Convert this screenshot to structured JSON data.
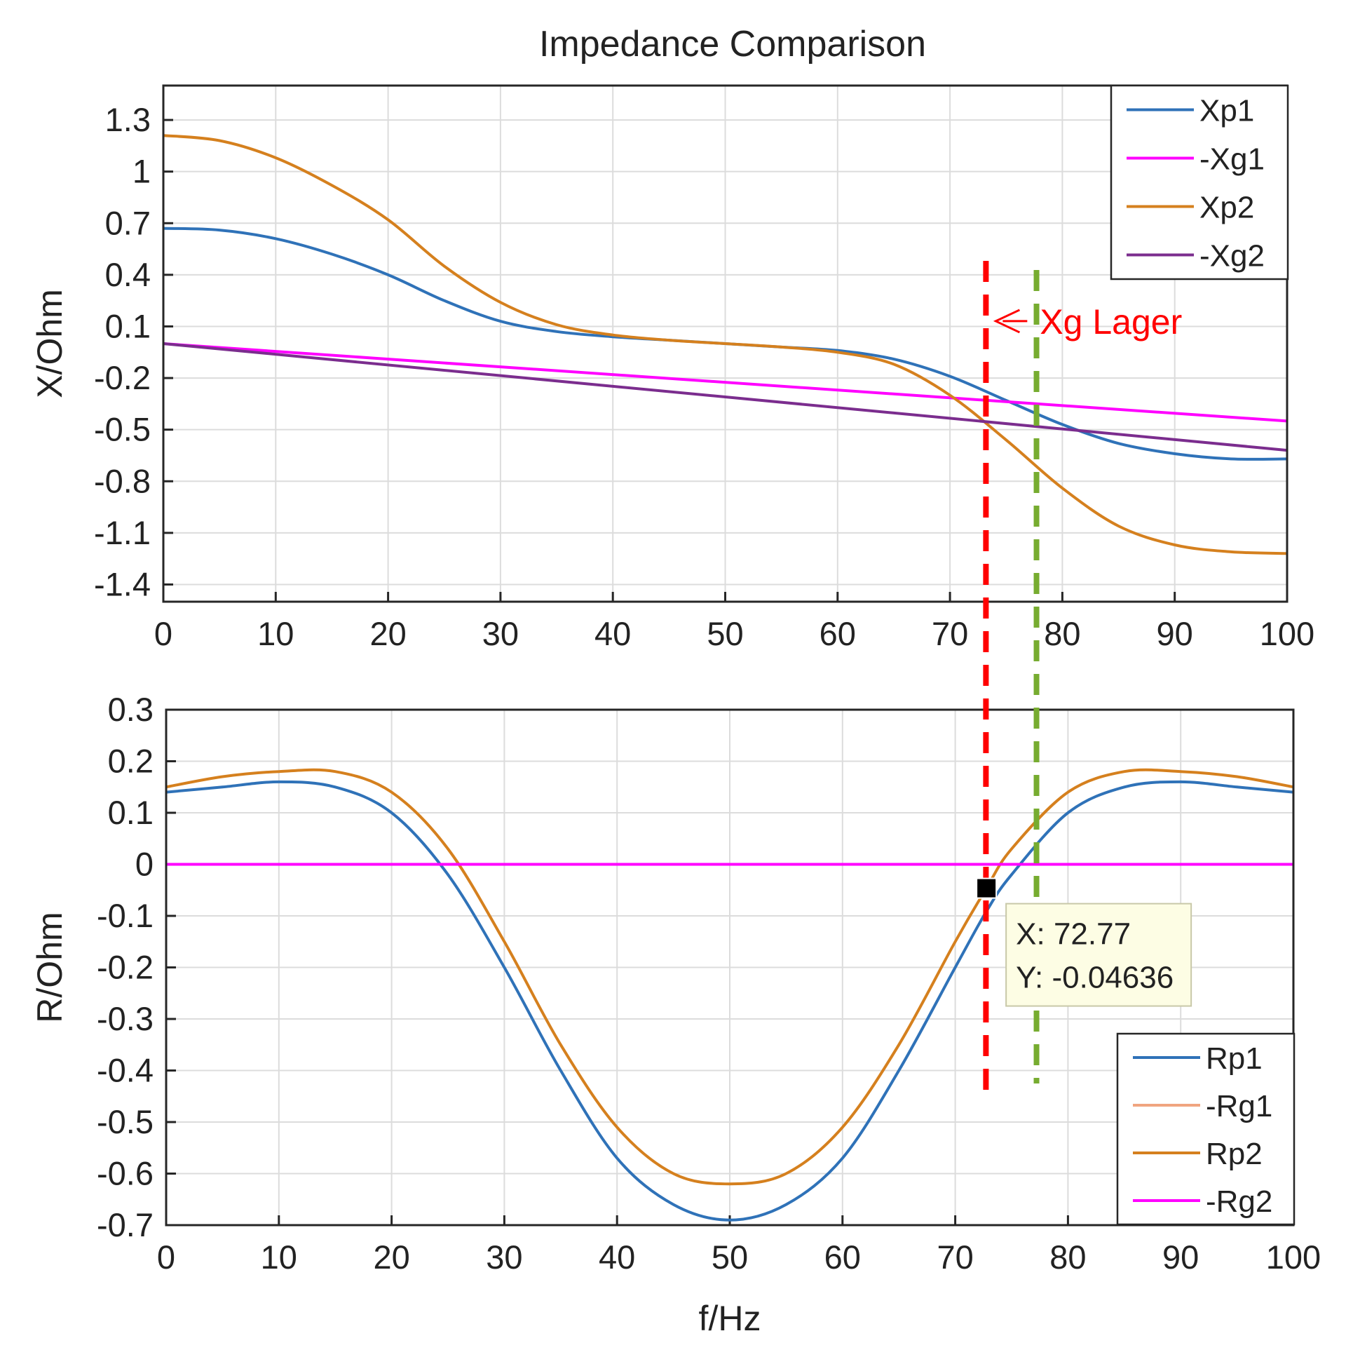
{
  "title": "Impedance Comparison",
  "chart_data": [
    {
      "type": "line",
      "name": "top",
      "xlabel": "",
      "ylabel": "X/Ohm",
      "xlim": [
        0,
        100
      ],
      "ylim": [
        -1.5,
        1.5
      ],
      "xticks": [
        "0",
        "10",
        "20",
        "30",
        "40",
        "50",
        "60",
        "70",
        "80",
        "90",
        "100"
      ],
      "yticks": [
        {
          "v": 1.3,
          "label": "1.3"
        },
        {
          "v": 1.0,
          "label": "1"
        },
        {
          "v": 0.7,
          "label": "0.7"
        },
        {
          "v": 0.4,
          "label": "0.4"
        },
        {
          "v": 0.1,
          "label": "0.1"
        },
        {
          "v": -0.2,
          "label": "-0.2"
        },
        {
          "v": -0.5,
          "label": "-0.5"
        },
        {
          "v": -0.8,
          "label": "-0.8"
        },
        {
          "v": -1.1,
          "label": "-1.1"
        },
        {
          "v": -1.4,
          "label": "-1.4"
        }
      ],
      "grid": true,
      "legend_position": "top-right",
      "series": [
        {
          "name": "Xp1",
          "color": "#2f72b8",
          "x": [
            0,
            5,
            10,
            15,
            20,
            25,
            30,
            35,
            40,
            45,
            50,
            55,
            60,
            65,
            70,
            75,
            80,
            85,
            90,
            95,
            100
          ],
          "y": [
            0.67,
            0.66,
            0.61,
            0.52,
            0.4,
            0.25,
            0.13,
            0.07,
            0.04,
            0.02,
            0.0,
            -0.02,
            -0.04,
            -0.09,
            -0.19,
            -0.33,
            -0.47,
            -0.58,
            -0.64,
            -0.67,
            -0.67
          ]
        },
        {
          "name": "-Xg1",
          "color": "#ff00ff",
          "x": [
            0,
            100
          ],
          "y": [
            0.0,
            -0.45
          ]
        },
        {
          "name": "Xp2",
          "color": "#d5801e",
          "x": [
            0,
            5,
            10,
            15,
            20,
            25,
            30,
            35,
            40,
            45,
            50,
            55,
            60,
            65,
            70,
            75,
            80,
            85,
            90,
            95,
            100
          ],
          "y": [
            1.21,
            1.18,
            1.08,
            0.92,
            0.72,
            0.45,
            0.24,
            0.11,
            0.05,
            0.02,
            0.0,
            -0.02,
            -0.05,
            -0.12,
            -0.3,
            -0.56,
            -0.84,
            -1.06,
            -1.17,
            -1.21,
            -1.22
          ]
        },
        {
          "name": "-Xg2",
          "color": "#7b2d8e",
          "x": [
            0,
            100
          ],
          "y": [
            0.0,
            -0.62
          ]
        }
      ],
      "annotations": [
        {
          "text": "Xg Lager",
          "color": "#ff0000",
          "x": 78,
          "y": 0.09
        },
        {
          "kind": "vline",
          "x": 73.2,
          "color": "#ff0000"
        },
        {
          "kind": "vline",
          "x": 77.7,
          "color": "#77ac30"
        }
      ]
    },
    {
      "type": "line",
      "name": "bottom",
      "xlabel": "f/Hz",
      "ylabel": "R/Ohm",
      "xlim": [
        0,
        100
      ],
      "ylim": [
        -0.7,
        0.3
      ],
      "xticks": [
        "0",
        "10",
        "20",
        "30",
        "40",
        "50",
        "60",
        "70",
        "80",
        "90",
        "100"
      ],
      "yticks": [
        {
          "v": 0.3,
          "label": "0.3"
        },
        {
          "v": 0.2,
          "label": "0.2"
        },
        {
          "v": 0.1,
          "label": "0.1"
        },
        {
          "v": 0.0,
          "label": "0"
        },
        {
          "v": -0.1,
          "label": "-0.1"
        },
        {
          "v": -0.2,
          "label": "-0.2"
        },
        {
          "v": -0.3,
          "label": "-0.3"
        },
        {
          "v": -0.4,
          "label": "-0.4"
        },
        {
          "v": -0.5,
          "label": "-0.5"
        },
        {
          "v": -0.6,
          "label": "-0.6"
        },
        {
          "v": -0.7,
          "label": "-0.7"
        }
      ],
      "grid": true,
      "legend_position": "bottom-right",
      "series": [
        {
          "name": "Rp1",
          "color": "#2f72b8",
          "x": [
            0,
            5,
            10,
            15,
            20,
            25,
            30,
            35,
            40,
            45,
            50,
            55,
            60,
            65,
            70,
            72.8,
            75,
            80,
            85,
            90,
            95,
            100
          ],
          "y": [
            0.14,
            0.15,
            0.16,
            0.15,
            0.1,
            -0.02,
            -0.2,
            -0.4,
            -0.57,
            -0.66,
            -0.69,
            -0.66,
            -0.57,
            -0.4,
            -0.2,
            -0.09,
            -0.02,
            0.1,
            0.15,
            0.16,
            0.15,
            0.14
          ]
        },
        {
          "name": "-Rg1",
          "color": "#f0a580",
          "x": [
            0,
            100
          ],
          "y": [
            0.0,
            0.0
          ]
        },
        {
          "name": "Rp2",
          "color": "#d5801e",
          "x": [
            0,
            5,
            10,
            15,
            20,
            25,
            30,
            35,
            40,
            45,
            50,
            55,
            60,
            65,
            70,
            72.77,
            75,
            80,
            85,
            90,
            95,
            100
          ],
          "y": [
            0.15,
            0.17,
            0.18,
            0.18,
            0.14,
            0.03,
            -0.15,
            -0.35,
            -0.51,
            -0.6,
            -0.62,
            -0.6,
            -0.51,
            -0.35,
            -0.15,
            -0.04636,
            0.03,
            0.14,
            0.18,
            0.18,
            0.17,
            0.15
          ]
        },
        {
          "name": "-Rg2",
          "color": "#ff00ff",
          "x": [
            0,
            100
          ],
          "y": [
            0.0,
            0.0
          ]
        }
      ],
      "annotations": [
        {
          "kind": "datatip",
          "x": 72.77,
          "y": -0.04636,
          "text_x": "X: 72.77",
          "text_y": "Y: -0.04636"
        },
        {
          "kind": "vline",
          "x": 73.2,
          "color": "#ff0000"
        },
        {
          "kind": "vline",
          "x": 77.7,
          "color": "#77ac30"
        }
      ]
    }
  ]
}
